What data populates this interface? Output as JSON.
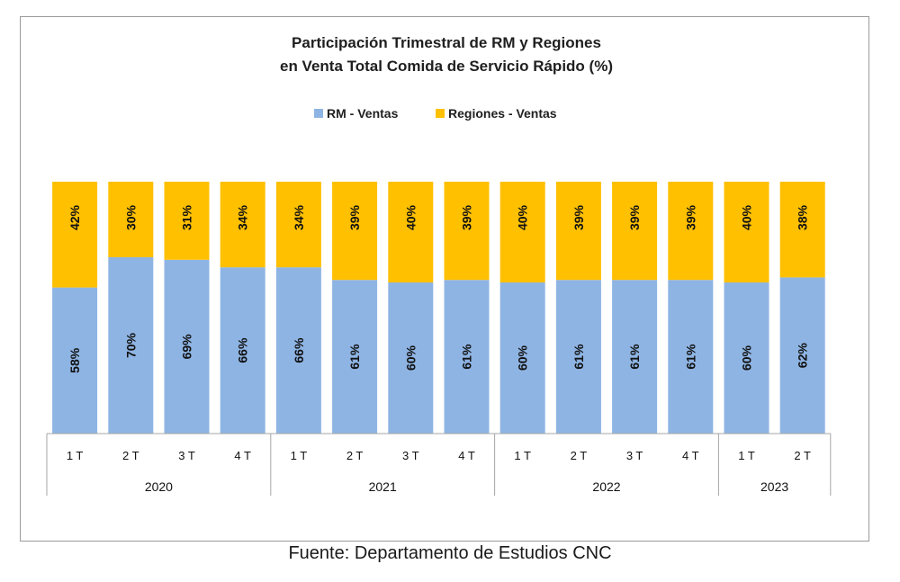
{
  "colors": {
    "rm": "#8EB4E3",
    "regiones": "#FFC000",
    "axis": "#a6a6a6"
  },
  "source": "Fuente: Departamento de Estudios CNC",
  "chart_data": {
    "type": "bar",
    "stacked": true,
    "title_lines": [
      "Participación Trimestral de RM y Regiones",
      "en Venta Total Comida de Servicio Rápido (%)"
    ],
    "legend_position": "top-center",
    "categories": [
      "1 T",
      "2 T",
      "3 T",
      "4 T",
      "1 T",
      "2 T",
      "3 T",
      "4 T",
      "1 T",
      "2 T",
      "3 T",
      "4 T",
      "1 T",
      "2 T"
    ],
    "groups": [
      {
        "label": "2020",
        "count": 4
      },
      {
        "label": "2021",
        "count": 4
      },
      {
        "label": "2022",
        "count": 4
      },
      {
        "label": "2023",
        "count": 2
      }
    ],
    "series": [
      {
        "name": "RM - Ventas",
        "color": "#8EB4E3",
        "values": [
          58,
          70,
          69,
          66,
          66,
          61,
          60,
          61,
          60,
          61,
          61,
          61,
          60,
          62
        ],
        "labels": [
          "58%",
          "70%",
          "69%",
          "66%",
          "66%",
          "61%",
          "60%",
          "61%",
          "60%",
          "61%",
          "61%",
          "61%",
          "60%",
          "62%"
        ]
      },
      {
        "name": "Regiones - Ventas",
        "color": "#FFC000",
        "values": [
          42,
          30,
          31,
          34,
          34,
          39,
          40,
          39,
          40,
          39,
          39,
          39,
          40,
          38
        ],
        "labels": [
          "42%",
          "30%",
          "31%",
          "34%",
          "34%",
          "39%",
          "40%",
          "39%",
          "40%",
          "39%",
          "39%",
          "39%",
          "40%",
          "38%"
        ]
      }
    ],
    "ylim": [
      0,
      100
    ],
    "grid": false
  }
}
